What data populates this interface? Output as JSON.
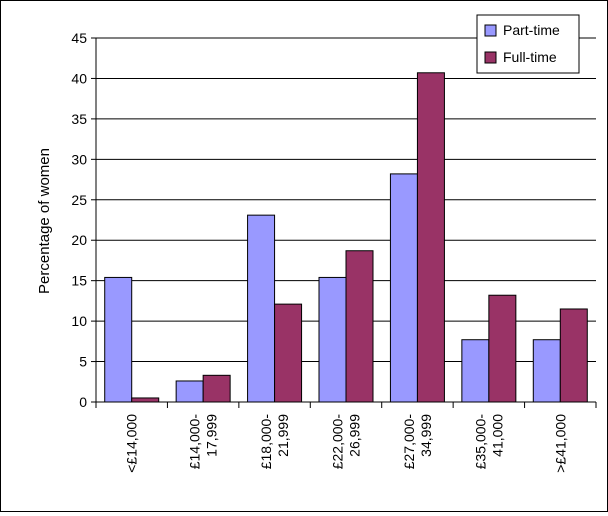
{
  "chart_data": {
    "type": "bar",
    "title": "",
    "xlabel": "",
    "ylabel": "Percentage of women",
    "ylim": [
      0,
      45
    ],
    "yticks": [
      0,
      5,
      10,
      15,
      20,
      25,
      30,
      35,
      40,
      45
    ],
    "grid": true,
    "legend_position": "top-right",
    "categories": [
      [
        "<£14,000"
      ],
      [
        "£14,000-",
        "17,999"
      ],
      [
        "£18,000-",
        "21,999"
      ],
      [
        "£22,000-",
        "26,999"
      ],
      [
        "£27,000-",
        "34,999"
      ],
      [
        "£35,000-",
        "41,000"
      ],
      [
        ">£41,000"
      ]
    ],
    "series": [
      {
        "name": "Part-time",
        "color": "#9999ff",
        "values": [
          15.4,
          2.6,
          23.1,
          15.4,
          28.2,
          7.7,
          7.7
        ]
      },
      {
        "name": "Full-time",
        "color": "#993366",
        "values": [
          0.5,
          3.3,
          12.1,
          18.7,
          40.7,
          13.2,
          11.5
        ]
      }
    ]
  }
}
